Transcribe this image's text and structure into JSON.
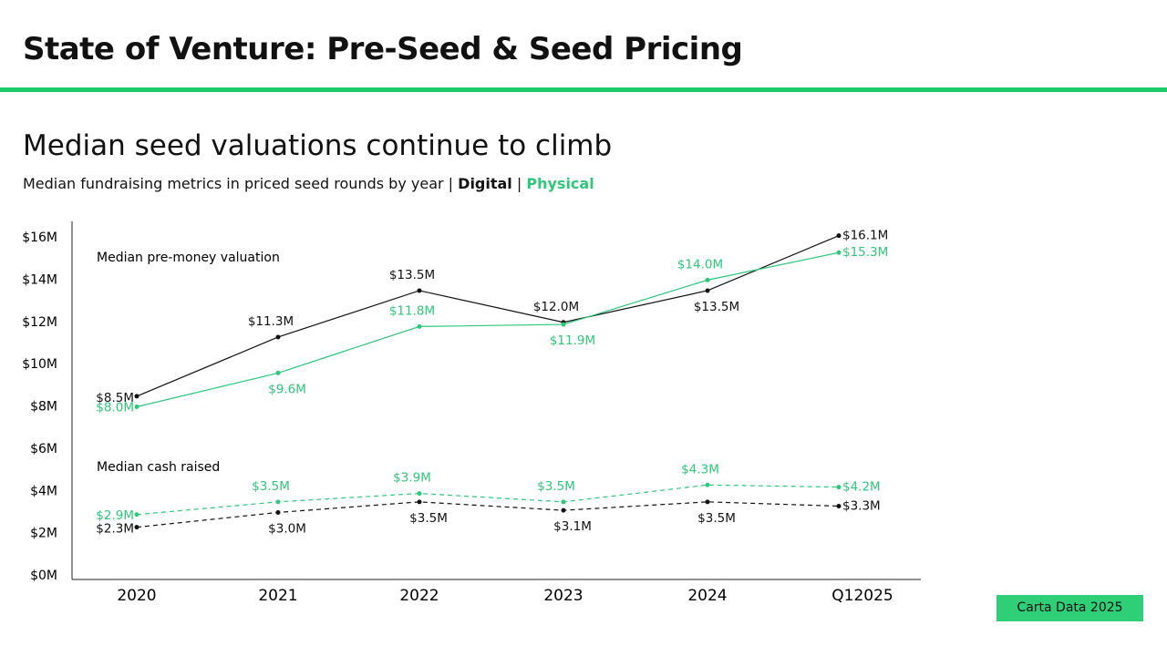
{
  "header": {
    "title": "State of Venture: Pre-Seed & Seed Pricing"
  },
  "chart_data": {
    "type": "line",
    "title": "Median seed valuations continue to climb",
    "subtitle": "Median fundraising metrics in priced seed rounds by year",
    "legend_separator": "|",
    "annotations": [
      "Median pre-money valuation",
      "Median cash raised"
    ],
    "categories": [
      "2020",
      "2021",
      "2022",
      "2023",
      "2024",
      "Q12025"
    ],
    "ylim": [
      0,
      16
    ],
    "yticks": [
      {
        "value": 0,
        "label": "$0M"
      },
      {
        "value": 2,
        "label": "$2M"
      },
      {
        "value": 4,
        "label": "$4M"
      },
      {
        "value": 6,
        "label": "$6M"
      },
      {
        "value": 8,
        "label": "$8M"
      },
      {
        "value": 10,
        "label": "$10M"
      },
      {
        "value": 12,
        "label": "$12M"
      },
      {
        "value": 14,
        "label": "$14M"
      },
      {
        "value": 16,
        "label": "$16M"
      }
    ],
    "grid": false,
    "series": [
      {
        "name": "Digital",
        "color": "#111111",
        "dashed": false,
        "values": [
          8.5,
          11.3,
          13.5,
          12.0,
          13.5,
          16.1
        ],
        "value_labels": [
          "$8.5M",
          "$11.3M",
          "$13.5M",
          "$12.0M",
          "$13.5M",
          "$16.1M"
        ]
      },
      {
        "name": "Physical",
        "color": "#2fc77a",
        "dashed": false,
        "values": [
          8.0,
          9.6,
          11.8,
          11.9,
          14.0,
          15.3
        ],
        "value_labels": [
          "$8.0M",
          "$9.6M",
          "$11.8M",
          "$11.9M",
          "$14.0M",
          "$15.3M"
        ]
      },
      {
        "name": "Digital",
        "color": "#111111",
        "dashed": true,
        "values": [
          2.3,
          3.0,
          3.5,
          3.1,
          3.5,
          3.3
        ],
        "value_labels": [
          "$2.3M",
          "$3.0M",
          "$3.5M",
          "$3.1M",
          "$3.5M",
          "$3.3M"
        ]
      },
      {
        "name": "Physical",
        "color": "#2fc77a",
        "dashed": true,
        "values": [
          2.9,
          3.5,
          3.9,
          3.5,
          4.3,
          4.2
        ],
        "value_labels": [
          "$2.9M",
          "$3.5M",
          "$3.9M",
          "$3.5M",
          "$4.3M",
          "$4.2M"
        ]
      }
    ]
  },
  "footer": {
    "source": "Carta Data 2025"
  }
}
